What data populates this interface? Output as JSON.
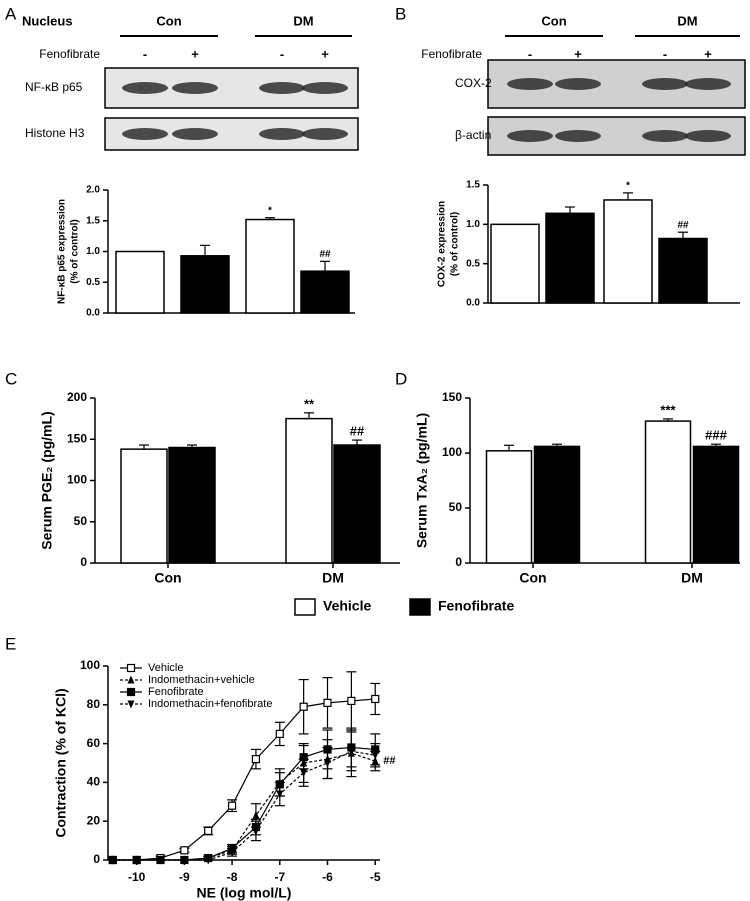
{
  "panels": [
    "A",
    "B",
    "C",
    "D",
    "E"
  ],
  "blots": [
    {
      "group_label": "Nucleus",
      "groups": [
        "Con",
        "DM"
      ],
      "treatment": "Fenofibrate",
      "signs": [
        "-",
        "+",
        "-",
        "+"
      ],
      "rows": [
        "NF-κB p65",
        "Histone H3"
      ]
    },
    {
      "groups": [
        "Con",
        "DM"
      ],
      "treatment": "Fenofibrate",
      "signs": [
        "-",
        "+",
        "-",
        "+"
      ],
      "rows": [
        "COX-2",
        "β-actin"
      ]
    }
  ],
  "chart_data": [
    {
      "type": "bar",
      "ylabel": [
        "NF-κB p65 expression",
        "(% of control)"
      ],
      "values": [
        1.0,
        0.93,
        1.52,
        0.68
      ],
      "errors": [
        0,
        0.17,
        0.03,
        0.16
      ],
      "colors": [
        "#ffffff",
        "#000000",
        "#ffffff",
        "#000000"
      ],
      "annotations": [
        null,
        null,
        "*",
        "##"
      ],
      "ylim": [
        0,
        2
      ],
      "yticks": [
        {
          "value": 0,
          "label": "0.0"
        },
        0.5,
        {
          "value": 1,
          "label": "1.0"
        },
        1.5,
        {
          "value": 2,
          "label": "2.0"
        }
      ]
    },
    {
      "type": "bar",
      "ylabel": [
        "COX-2 expression",
        "(% of control)"
      ],
      "values": [
        1.0,
        1.14,
        1.31,
        0.82
      ],
      "errors": [
        0,
        0.08,
        0.09,
        0.08
      ],
      "colors": [
        "#ffffff",
        "#000000",
        "#ffffff",
        "#000000"
      ],
      "annotations": [
        null,
        null,
        "*",
        "##"
      ],
      "ylim": [
        0,
        1.5
      ],
      "yticks": [
        {
          "value": 0,
          "label": "0.0"
        },
        0.5,
        {
          "value": 1,
          "label": "1.0"
        },
        1.5
      ]
    },
    {
      "type": "grouped_bar",
      "ylabel": [
        "Serum PGE₂ (pg/mL)"
      ],
      "categories": [
        "Con",
        "DM"
      ],
      "series": [
        {
          "name": "Vehicle",
          "color": "#ffffff",
          "values": [
            138,
            175
          ],
          "errors": [
            5,
            7
          ],
          "annotations": [
            null,
            "**"
          ]
        },
        {
          "name": "Fenofibrate",
          "color": "#000000",
          "values": [
            140,
            143
          ],
          "errors": [
            3,
            6
          ],
          "annotations": [
            null,
            "##"
          ]
        }
      ],
      "ylim": [
        0,
        200
      ],
      "yticks": [
        0,
        50,
        100,
        150,
        200
      ]
    },
    {
      "type": "grouped_bar",
      "ylabel": [
        "Serum TxA₂ (pg/mL)"
      ],
      "categories": [
        "Con",
        "DM"
      ],
      "series": [
        {
          "color": "#ffffff",
          "values": [
            102,
            129
          ],
          "errors": [
            5,
            2
          ],
          "annotations": [
            null,
            "***"
          ]
        },
        {
          "color": "#000000",
          "values": [
            106,
            106
          ],
          "errors": [
            2,
            2
          ],
          "annotations": [
            null,
            "###"
          ]
        }
      ],
      "ylim": [
        0,
        150
      ],
      "yticks": [
        0,
        50,
        100,
        150
      ]
    },
    {
      "type": "line",
      "ylabel": [
        "Contraction (% of KCl)"
      ],
      "xlabel": "NE (log mol/L)",
      "annotation": "##",
      "x": [
        -10.5,
        -10,
        -9.5,
        -9,
        -8.5,
        -8,
        -7.5,
        -7,
        -6.5,
        -6,
        -5.5,
        -5
      ],
      "series": [
        {
          "name": "Vehicle",
          "color": "#000000",
          "marker": "square-open",
          "dash": false,
          "values": [
            0,
            0,
            1,
            5,
            15,
            28,
            52,
            65,
            79,
            81,
            82,
            83
          ],
          "errors": [
            0,
            0,
            1,
            1,
            2,
            3,
            5,
            6,
            14,
            13,
            15,
            8
          ]
        },
        {
          "name": "Indomethacin+vehicle",
          "color": "#000000",
          "marker": "triangle-up",
          "dash": true,
          "values": [
            0,
            0,
            0,
            0,
            1,
            5,
            23,
            40,
            50,
            52,
            55,
            51
          ],
          "errors": [
            0,
            0,
            0,
            0,
            1,
            2,
            6,
            7,
            10,
            10,
            12,
            5
          ]
        },
        {
          "name": "Fenofibrate",
          "color": "#000000",
          "marker": "square",
          "dash": false,
          "values": [
            0,
            0,
            0,
            0,
            1,
            6,
            17,
            39,
            53,
            57,
            58,
            57
          ],
          "errors": [
            0,
            0,
            0,
            0,
            1,
            2,
            4,
            6,
            6,
            10,
            10,
            8
          ]
        },
        {
          "name": "Indomethacin+fenofibrate",
          "color": "#000000",
          "marker": "triangle-down",
          "dash": true,
          "values": [
            0,
            0,
            0,
            0,
            0,
            4,
            15,
            34,
            45,
            50,
            56,
            54
          ],
          "errors": [
            0,
            0,
            0,
            0,
            0,
            2,
            5,
            6,
            7,
            8,
            10,
            6
          ]
        }
      ],
      "xlim": [
        -10.6,
        -4.9
      ],
      "xticks": [
        -10,
        -9,
        -8,
        -7,
        -6,
        -5
      ],
      "ylim": [
        0,
        100
      ],
      "yticks": [
        0,
        20,
        40,
        60,
        80,
        100
      ]
    }
  ]
}
